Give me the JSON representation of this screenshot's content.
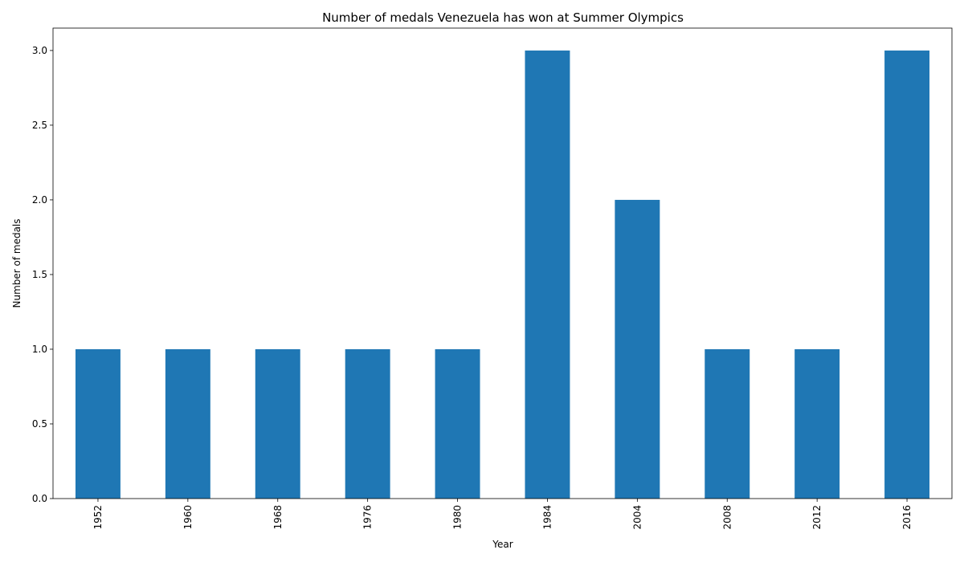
{
  "chart_data": {
    "type": "bar",
    "title": "Number of medals Venezuela has won at Summer Olympics",
    "xlabel": "Year",
    "ylabel": "Number of medals",
    "categories": [
      "1952",
      "1960",
      "1968",
      "1976",
      "1980",
      "1984",
      "2004",
      "2008",
      "2012",
      "2016"
    ],
    "values": [
      1,
      1,
      1,
      1,
      1,
      3,
      2,
      1,
      1,
      3
    ],
    "ylim": [
      0,
      3.15
    ],
    "yticks": [
      "0.0",
      "0.5",
      "1.0",
      "1.5",
      "2.0",
      "2.5",
      "3.0"
    ],
    "grid": false,
    "legend": "none",
    "bar_color": "#1f77b4",
    "x_tick_rotation": "vertical"
  }
}
